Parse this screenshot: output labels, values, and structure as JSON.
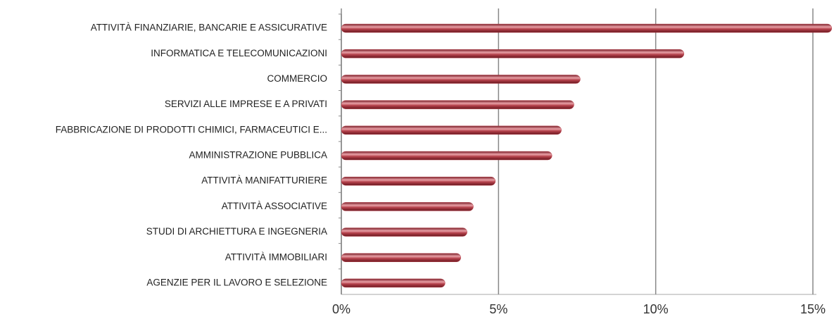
{
  "chart_data": {
    "type": "bar",
    "orientation": "horizontal",
    "categories": [
      "ATTIVITÀ FINANZIARIE, BANCARIE E ASSICURATIVE",
      "INFORMATICA E TELECOMUNICAZIONI",
      "COMMERCIO",
      "SERVIZI ALLE IMPRESE E A PRIVATI",
      "FABBRICAZIONE DI PRODOTTI CHIMICI, FARMACEUTICI E...",
      "AMMINISTRAZIONE PUBBLICA",
      "ATTIVITÀ MANIFATTURIERE",
      "ATTIVITÀ ASSOCIATIVE",
      "STUDI DI ARCHIETTURA E INGEGNERIA",
      "ATTIVITÀ IMMOBILIARI",
      "AGENZIE PER IL LAVORO E SELEZIONE"
    ],
    "values": [
      15.6,
      10.9,
      7.6,
      7.4,
      7.0,
      6.7,
      4.9,
      4.2,
      4.0,
      3.8,
      3.3
    ],
    "color": "#b5414b",
    "xlim": [
      0,
      15
    ],
    "xticks": [
      {
        "value": 0,
        "label": "0%"
      },
      {
        "value": 5,
        "label": "5%"
      },
      {
        "value": 10,
        "label": "10%"
      },
      {
        "value": 15,
        "label": "15%"
      }
    ],
    "grid": true
  }
}
